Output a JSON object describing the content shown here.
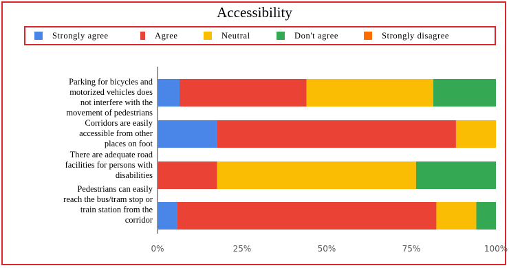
{
  "chart_data": {
    "type": "bar",
    "orientation": "horizontal",
    "stacked": true,
    "percent_scale": true,
    "title": "Accessibility",
    "legend_position": "top",
    "categories": [
      "Parking for bicycles and motorized vehicles does not interfere with the movement of pedestrians",
      "Corridors are easily accessible from other places on foot",
      "There are adequate road facilities for persons with disabilities",
      "Pedestrians can easily reach the bus/tram stop or train station from the corridor"
    ],
    "category_lines": [
      [
        "Parking for bicycles and",
        "motorized vehicles does",
        "not interfere with the",
        "movement of pedestrians"
      ],
      [
        "Corridors are easily",
        "accessible from other",
        "places on foot"
      ],
      [
        "There are adequate road",
        "facilities for persons with",
        "disabilities"
      ],
      [
        "Pedestrians can easily",
        "reach the bus/tram stop or",
        "train station from the",
        "corridor"
      ]
    ],
    "series": [
      {
        "name": "Strongly agree",
        "color": "#4a86e8",
        "values": [
          6.5,
          17.6,
          0,
          5.9
        ]
      },
      {
        "name": "Agree",
        "color": "#ea4335",
        "values": [
          37.5,
          70.6,
          17.6,
          76.5
        ]
      },
      {
        "name": "Neutral",
        "color": "#fbbc04",
        "values": [
          37.5,
          11.8,
          58.8,
          11.8
        ]
      },
      {
        "name": "Don't agree",
        "color": "#34a853",
        "values": [
          18.5,
          0,
          23.6,
          5.8
        ]
      },
      {
        "name": "Strongly disagree",
        "color": "#ff6d01",
        "values": [
          0,
          0,
          0,
          0
        ]
      }
    ],
    "xlim": [
      0,
      100
    ],
    "x_ticks": [
      "0%",
      "25%",
      "50%",
      "75%",
      "100%"
    ],
    "grid": false
  }
}
